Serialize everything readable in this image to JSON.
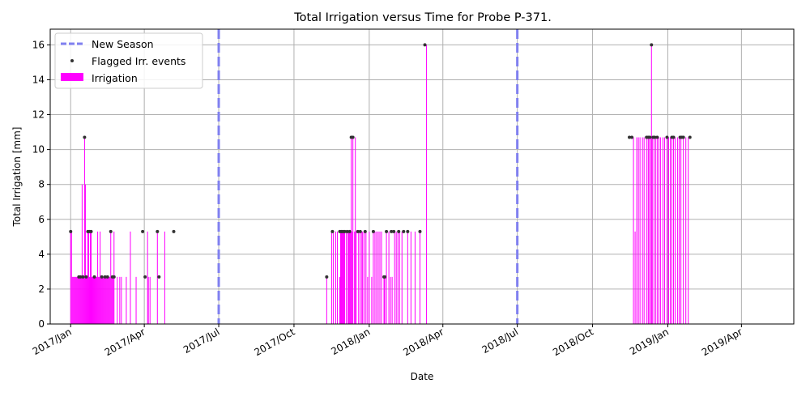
{
  "chart_data": {
    "type": "bar",
    "title": "Total Irrigation versus Time for Probe P-371.",
    "xlabel": "Date",
    "ylabel": "Total Irrigation [mm]",
    "xlim": [
      "2016-12-07",
      "2019-06-04"
    ],
    "ylim": [
      0,
      16.9
    ],
    "x_ticks": [
      {
        "date": "2017-01-01",
        "label": "2017/Jan"
      },
      {
        "date": "2017-04-01",
        "label": "2017/Apr"
      },
      {
        "date": "2017-07-01",
        "label": "2017/Jul"
      },
      {
        "date": "2017-10-01",
        "label": "2017/Oct"
      },
      {
        "date": "2018-01-01",
        "label": "2018/Jan"
      },
      {
        "date": "2018-04-01",
        "label": "2018/Apr"
      },
      {
        "date": "2018-07-01",
        "label": "2018/Jul"
      },
      {
        "date": "2018-10-01",
        "label": "2018/Oct"
      },
      {
        "date": "2019-01-01",
        "label": "2019/Jan"
      },
      {
        "date": "2019-04-01",
        "label": "2019/Apr"
      }
    ],
    "y_ticks": [
      0,
      2,
      4,
      6,
      8,
      10,
      12,
      14,
      16
    ],
    "grid": true,
    "legend_position": "top-left",
    "legend": [
      "New Season",
      "Flagged Irr. events",
      "Irrigation"
    ],
    "new_season_lines": [
      "2017-07-01",
      "2018-07-01"
    ],
    "colors": {
      "irrigation": "#ff00ff",
      "flag": "#333333",
      "season": "#8080f0",
      "grid": "#b0b0b0"
    },
    "irrigation": [
      [
        "2017-01-01",
        5.3
      ],
      [
        "2017-01-02",
        5.3
      ],
      [
        "2017-01-03",
        2.7
      ],
      [
        "2017-01-04",
        2.7
      ],
      [
        "2017-01-05",
        2.7
      ],
      [
        "2017-01-06",
        2.7
      ],
      [
        "2017-01-07",
        2.7
      ],
      [
        "2017-01-08",
        2.7
      ],
      [
        "2017-01-09",
        2.7
      ],
      [
        "2017-01-10",
        2.7
      ],
      [
        "2017-01-11",
        2.7
      ],
      [
        "2017-01-12",
        2.7
      ],
      [
        "2017-01-13",
        2.7
      ],
      [
        "2017-01-14",
        2.7
      ],
      [
        "2017-01-15",
        8.0
      ],
      [
        "2017-01-16",
        2.7
      ],
      [
        "2017-01-17",
        2.7
      ],
      [
        "2017-01-18",
        10.7
      ],
      [
        "2017-01-19",
        8.0
      ],
      [
        "2017-01-20",
        2.7
      ],
      [
        "2017-01-21",
        2.7
      ],
      [
        "2017-01-22",
        5.3
      ],
      [
        "2017-01-23",
        5.3
      ],
      [
        "2017-01-24",
        2.7
      ],
      [
        "2017-01-25",
        5.3
      ],
      [
        "2017-01-26",
        5.3
      ],
      [
        "2017-01-27",
        2.7
      ],
      [
        "2017-01-28",
        2.7
      ],
      [
        "2017-01-29",
        2.7
      ],
      [
        "2017-01-30",
        2.7
      ],
      [
        "2017-01-31",
        2.7
      ],
      [
        "2017-02-01",
        2.7
      ],
      [
        "2017-02-02",
        2.7
      ],
      [
        "2017-02-03",
        5.3
      ],
      [
        "2017-02-04",
        2.7
      ],
      [
        "2017-02-05",
        2.7
      ],
      [
        "2017-02-06",
        5.3
      ],
      [
        "2017-02-07",
        2.7
      ],
      [
        "2017-02-08",
        2.7
      ],
      [
        "2017-02-09",
        2.7
      ],
      [
        "2017-02-10",
        2.7
      ],
      [
        "2017-02-11",
        2.7
      ],
      [
        "2017-02-12",
        2.7
      ],
      [
        "2017-02-13",
        2.7
      ],
      [
        "2017-02-14",
        2.7
      ],
      [
        "2017-02-15",
        2.7
      ],
      [
        "2017-02-16",
        2.7
      ],
      [
        "2017-02-17",
        2.7
      ],
      [
        "2017-02-18",
        2.7
      ],
      [
        "2017-02-19",
        5.3
      ],
      [
        "2017-02-20",
        2.7
      ],
      [
        "2017-02-21",
        2.7
      ],
      [
        "2017-02-22",
        2.7
      ],
      [
        "2017-02-23",
        5.3
      ],
      [
        "2017-02-27",
        2.7
      ],
      [
        "2017-03-02",
        2.7
      ],
      [
        "2017-03-04",
        2.7
      ],
      [
        "2017-03-10",
        2.7
      ],
      [
        "2017-03-15",
        5.3
      ],
      [
        "2017-03-22",
        2.7
      ],
      [
        "2017-04-05",
        5.3
      ],
      [
        "2017-04-06",
        2.7
      ],
      [
        "2017-04-08",
        2.7
      ],
      [
        "2017-04-17",
        5.3
      ],
      [
        "2017-04-26",
        5.3
      ],
      [
        "2017-11-10",
        2.7
      ],
      [
        "2017-11-16",
        5.3
      ],
      [
        "2017-11-18",
        5.3
      ],
      [
        "2017-11-21",
        5.3
      ],
      [
        "2017-11-23",
        5.3
      ],
      [
        "2017-11-26",
        2.7
      ],
      [
        "2017-11-27",
        5.3
      ],
      [
        "2017-11-28",
        5.3
      ],
      [
        "2017-11-29",
        5.3
      ],
      [
        "2017-11-30",
        5.3
      ],
      [
        "2017-12-01",
        5.3
      ],
      [
        "2017-12-02",
        5.3
      ],
      [
        "2017-12-04",
        5.3
      ],
      [
        "2017-12-06",
        5.3
      ],
      [
        "2017-12-07",
        5.3
      ],
      [
        "2017-12-08",
        5.3
      ],
      [
        "2017-12-09",
        5.3
      ],
      [
        "2017-12-10",
        10.7
      ],
      [
        "2017-12-11",
        5.3
      ],
      [
        "2017-12-12",
        10.7
      ],
      [
        "2017-12-14",
        5.3
      ],
      [
        "2017-12-15",
        10.7
      ],
      [
        "2017-12-16",
        5.3
      ],
      [
        "2017-12-19",
        5.3
      ],
      [
        "2017-12-21",
        5.3
      ],
      [
        "2017-12-23",
        5.3
      ],
      [
        "2017-12-24",
        5.3
      ],
      [
        "2017-12-26",
        5.3
      ],
      [
        "2017-12-28",
        5.3
      ],
      [
        "2017-12-30",
        2.7
      ],
      [
        "2018-01-01",
        5.3
      ],
      [
        "2018-01-04",
        2.7
      ],
      [
        "2018-01-06",
        5.3
      ],
      [
        "2018-01-08",
        5.3
      ],
      [
        "2018-01-10",
        5.3
      ],
      [
        "2018-01-12",
        5.3
      ],
      [
        "2018-01-14",
        5.3
      ],
      [
        "2018-01-16",
        5.3
      ],
      [
        "2018-01-19",
        2.7
      ],
      [
        "2018-01-20",
        2.7
      ],
      [
        "2018-01-22",
        5.3
      ],
      [
        "2018-01-25",
        5.3
      ],
      [
        "2018-01-27",
        2.7
      ],
      [
        "2018-01-29",
        2.7
      ],
      [
        "2018-02-01",
        5.3
      ],
      [
        "2018-02-03",
        5.3
      ],
      [
        "2018-02-05",
        5.3
      ],
      [
        "2018-02-07",
        5.3
      ],
      [
        "2018-02-10",
        5.3
      ],
      [
        "2018-02-17",
        5.3
      ],
      [
        "2018-02-21",
        5.3
      ],
      [
        "2018-02-26",
        5.3
      ],
      [
        "2018-03-04",
        5.3
      ],
      [
        "2018-03-12",
        16.0
      ]
    ],
    "irrigation_2019": [
      [
        "2018-11-20",
        10.7
      ],
      [
        "2018-11-22",
        5.3
      ],
      [
        "2018-11-24",
        10.7
      ],
      [
        "2018-11-26",
        10.7
      ],
      [
        "2018-11-28",
        10.7
      ],
      [
        "2018-12-01",
        10.7
      ],
      [
        "2018-12-03",
        10.7
      ],
      [
        "2018-12-06",
        10.7
      ],
      [
        "2018-12-08",
        10.7
      ],
      [
        "2018-12-09",
        10.7
      ],
      [
        "2018-12-11",
        10.7
      ],
      [
        "2018-12-12",
        16.0
      ],
      [
        "2018-12-13",
        10.7
      ],
      [
        "2018-12-15",
        10.7
      ],
      [
        "2018-12-17",
        10.7
      ],
      [
        "2018-12-19",
        10.7
      ],
      [
        "2018-12-21",
        10.7
      ],
      [
        "2018-12-23",
        10.7
      ],
      [
        "2018-12-26",
        10.7
      ],
      [
        "2018-12-28",
        10.7
      ],
      [
        "2018-12-31",
        10.7
      ],
      [
        "2019-01-02",
        10.7
      ],
      [
        "2019-01-04",
        10.7
      ],
      [
        "2019-01-06",
        10.7
      ],
      [
        "2019-01-08",
        10.7
      ],
      [
        "2019-01-10",
        10.7
      ],
      [
        "2019-01-13",
        10.7
      ],
      [
        "2019-01-15",
        10.7
      ],
      [
        "2019-01-17",
        10.7
      ],
      [
        "2019-01-20",
        10.7
      ],
      [
        "2019-01-23",
        10.7
      ],
      [
        "2019-01-26",
        10.7
      ]
    ],
    "flagged": [
      [
        "2017-01-01",
        5.3
      ],
      [
        "2017-01-11",
        2.7
      ],
      [
        "2017-01-13",
        2.7
      ],
      [
        "2017-01-16",
        2.7
      ],
      [
        "2017-01-18",
        10.7
      ],
      [
        "2017-01-20",
        2.7
      ],
      [
        "2017-01-22",
        5.3
      ],
      [
        "2017-01-24",
        5.3
      ],
      [
        "2017-01-26",
        5.3
      ],
      [
        "2017-01-30",
        2.7
      ],
      [
        "2017-02-08",
        2.7
      ],
      [
        "2017-02-12",
        2.7
      ],
      [
        "2017-02-15",
        2.7
      ],
      [
        "2017-02-19",
        5.3
      ],
      [
        "2017-02-21",
        2.7
      ],
      [
        "2017-02-23",
        2.7
      ],
      [
        "2017-03-30",
        5.3
      ],
      [
        "2017-04-02",
        2.7
      ],
      [
        "2017-04-17",
        5.3
      ],
      [
        "2017-04-19",
        2.7
      ],
      [
        "2017-05-07",
        5.3
      ],
      [
        "2017-11-10",
        2.7
      ],
      [
        "2017-11-17",
        5.3
      ],
      [
        "2017-11-26",
        5.3
      ],
      [
        "2017-11-28",
        5.3
      ],
      [
        "2017-11-30",
        5.3
      ],
      [
        "2017-12-02",
        5.3
      ],
      [
        "2017-12-05",
        5.3
      ],
      [
        "2017-12-08",
        5.3
      ],
      [
        "2017-12-10",
        10.7
      ],
      [
        "2017-12-12",
        10.7
      ],
      [
        "2017-12-18",
        5.3
      ],
      [
        "2017-12-21",
        5.3
      ],
      [
        "2017-12-27",
        5.3
      ],
      [
        "2018-01-06",
        5.3
      ],
      [
        "2018-01-19",
        2.7
      ],
      [
        "2018-01-20",
        2.7
      ],
      [
        "2018-01-22",
        5.3
      ],
      [
        "2018-01-28",
        5.3
      ],
      [
        "2018-01-31",
        5.3
      ],
      [
        "2018-02-06",
        5.3
      ],
      [
        "2018-02-12",
        5.3
      ],
      [
        "2018-02-17",
        5.3
      ],
      [
        "2018-03-04",
        5.3
      ],
      [
        "2018-03-10",
        16.0
      ],
      [
        "2018-11-15",
        10.7
      ],
      [
        "2018-11-18",
        10.7
      ],
      [
        "2018-12-06",
        10.7
      ],
      [
        "2018-12-08",
        10.7
      ],
      [
        "2018-12-10",
        10.7
      ],
      [
        "2018-12-12",
        16.0
      ],
      [
        "2018-12-14",
        10.7
      ],
      [
        "2018-12-16",
        10.7
      ],
      [
        "2018-12-19",
        10.7
      ],
      [
        "2018-12-31",
        10.7
      ],
      [
        "2019-01-06",
        10.7
      ],
      [
        "2019-01-08",
        10.7
      ],
      [
        "2019-01-16",
        10.7
      ],
      [
        "2019-01-18",
        10.7
      ],
      [
        "2019-01-20",
        10.7
      ],
      [
        "2019-01-28",
        10.7
      ]
    ]
  }
}
